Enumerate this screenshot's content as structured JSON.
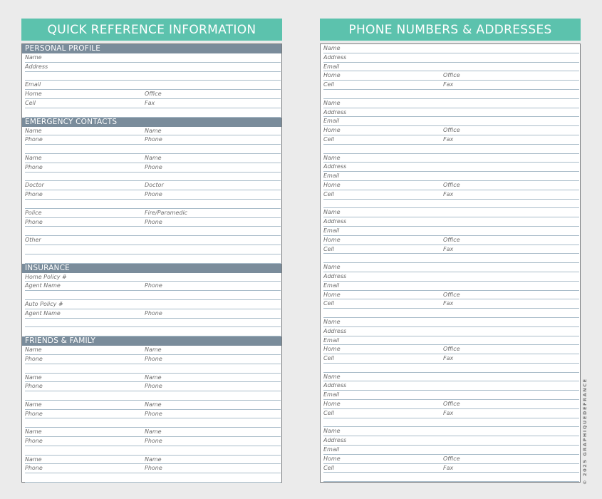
{
  "left": {
    "title": "QUICK REFERENCE INFORMATION",
    "sections": [
      {
        "label": "PERSONAL PROFILE",
        "rows": [
          [
            "Name",
            ""
          ],
          [
            "Address",
            ""
          ],
          [
            "",
            ""
          ],
          [
            "Email",
            ""
          ],
          [
            "Home",
            "Office"
          ],
          [
            "Cell",
            "Fax"
          ],
          [
            "",
            ""
          ]
        ]
      },
      {
        "label": "EMERGENCY CONTACTS",
        "rows": [
          [
            "Name",
            "Name"
          ],
          [
            "Phone",
            "Phone"
          ],
          [
            "",
            ""
          ],
          [
            "Name",
            "Name"
          ],
          [
            "Phone",
            "Phone"
          ],
          [
            "",
            ""
          ],
          [
            "Doctor",
            "Doctor"
          ],
          [
            "Phone",
            "Phone"
          ],
          [
            "",
            ""
          ],
          [
            "Police",
            "Fire/Paramedic"
          ],
          [
            "Phone",
            "Phone"
          ],
          [
            "",
            ""
          ],
          [
            "Other",
            ""
          ],
          [
            "",
            ""
          ],
          [
            "",
            ""
          ]
        ]
      },
      {
        "label": "INSURANCE",
        "rows": [
          [
            "Home Policy #",
            ""
          ],
          [
            "Agent Name",
            "Phone"
          ],
          [
            "",
            ""
          ],
          [
            "Auto Policy #",
            ""
          ],
          [
            "Agent Name",
            "Phone"
          ],
          [
            "",
            ""
          ],
          [
            "",
            ""
          ]
        ]
      },
      {
        "label": "FRIENDS & FAMILY",
        "rows": [
          [
            "Name",
            "Name"
          ],
          [
            "Phone",
            "Phone"
          ],
          [
            "",
            ""
          ],
          [
            "Name",
            "Name"
          ],
          [
            "Phone",
            "Phone"
          ],
          [
            "",
            ""
          ],
          [
            "Name",
            "Name"
          ],
          [
            "Phone",
            "Phone"
          ],
          [
            "",
            ""
          ],
          [
            "Name",
            "Name"
          ],
          [
            "Phone",
            "Phone"
          ],
          [
            "",
            ""
          ],
          [
            "Name",
            "Name"
          ],
          [
            "Phone",
            "Phone"
          ],
          [
            "",
            ""
          ]
        ]
      }
    ]
  },
  "right": {
    "title": "PHONE NUMBERS & ADDRESSES",
    "sections": [
      {
        "label": "",
        "rows": [
          [
            "Name",
            ""
          ],
          [
            "Address",
            ""
          ],
          [
            "Email",
            ""
          ],
          [
            "Home",
            "Office"
          ],
          [
            "Cell",
            "Fax"
          ],
          [
            "",
            ""
          ],
          [
            "Name",
            ""
          ],
          [
            "Address",
            ""
          ],
          [
            "Email",
            ""
          ],
          [
            "Home",
            "Office"
          ],
          [
            "Cell",
            "Fax"
          ],
          [
            "",
            ""
          ],
          [
            "Name",
            ""
          ],
          [
            "Address",
            ""
          ],
          [
            "Email",
            ""
          ],
          [
            "Home",
            "Office"
          ],
          [
            "Cell",
            "Fax"
          ],
          [
            "",
            ""
          ],
          [
            "Name",
            ""
          ],
          [
            "Address",
            ""
          ],
          [
            "Email",
            ""
          ],
          [
            "Home",
            "Office"
          ],
          [
            "Cell",
            "Fax"
          ],
          [
            "",
            ""
          ],
          [
            "Name",
            ""
          ],
          [
            "Address",
            ""
          ],
          [
            "Email",
            ""
          ],
          [
            "Home",
            "Office"
          ],
          [
            "Cell",
            "Fax"
          ],
          [
            "",
            ""
          ],
          [
            "Name",
            ""
          ],
          [
            "Address",
            ""
          ],
          [
            "Email",
            ""
          ],
          [
            "Home",
            "Office"
          ],
          [
            "Cell",
            "Fax"
          ],
          [
            "",
            ""
          ],
          [
            "Name",
            ""
          ],
          [
            "Address",
            ""
          ],
          [
            "Email",
            ""
          ],
          [
            "Home",
            "Office"
          ],
          [
            "Cell",
            "Fax"
          ],
          [
            "",
            ""
          ],
          [
            "Name",
            ""
          ],
          [
            "Address",
            ""
          ],
          [
            "Email",
            ""
          ],
          [
            "Home",
            "Office"
          ],
          [
            "Cell",
            "Fax"
          ],
          [
            "",
            ""
          ]
        ]
      }
    ]
  },
  "copyright": "© 2025 GRAPHIQUEDEFRANCE",
  "colors": {
    "header": "#5cc2ad",
    "section": "#7a8c9b",
    "line": "#a9bcc9"
  }
}
